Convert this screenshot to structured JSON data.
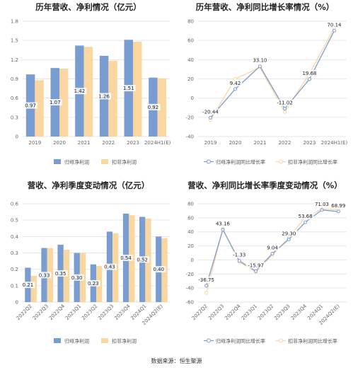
{
  "footer": {
    "source": "数据来源：恒生聚源"
  },
  "colors": {
    "blue": "#7a9dd1",
    "orange": "#fad7a0",
    "grid": "#e6e6e6"
  },
  "chart_data": [
    {
      "type": "bar",
      "title": "历年营收、净利情况（亿元）",
      "categories": [
        "2019",
        "2020",
        "2021",
        "2022",
        "2023",
        "2024H1(E)"
      ],
      "series": [
        {
          "name": "归母净利润",
          "values": [
            0.97,
            1.07,
            1.42,
            1.26,
            1.51,
            0.92
          ],
          "labels": [
            "0.97",
            "1.07",
            "1.42",
            "1.26",
            "1.51",
            "0.92"
          ]
        },
        {
          "name": "扣非净利润",
          "values": [
            0.88,
            1.06,
            1.4,
            1.18,
            1.48,
            0.91
          ]
        }
      ],
      "yticks": [
        "0",
        "0.3",
        "0.6",
        "0.9",
        "1.2",
        "1.5",
        "1.8"
      ],
      "ylim": [
        0,
        1.8
      ]
    },
    {
      "type": "line",
      "title": "历年营收、净利同比增长率情况（%）",
      "categories": [
        "2019",
        "2020",
        "2021",
        "2022",
        "2023",
        "2024H1(E)"
      ],
      "series": [
        {
          "name": "归母净利润同比增长率",
          "values": [
            -20.44,
            9.42,
            33.1,
            -11.02,
            19.68,
            70.14
          ],
          "labels": [
            "-20.44",
            "9.42",
            "33.10",
            "-11.02",
            "19.68",
            "70.14"
          ]
        },
        {
          "name": "扣非净利润同比增长率",
          "values": [
            -23.0,
            20.0,
            32.0,
            -14.5,
            25.5,
            73.0
          ]
        }
      ],
      "yticks": [
        "-40",
        "-20",
        "0",
        "20",
        "40",
        "60",
        "80"
      ],
      "ylim": [
        -40,
        80
      ]
    },
    {
      "type": "bar",
      "title": "营收、净利季度变动情况（亿元）",
      "categories": [
        "2022Q2",
        "2022Q3",
        "2022Q4",
        "2023Q1",
        "2023Q2",
        "2023Q3",
        "2023Q4",
        "2024Q1",
        "2024Q2(E)"
      ],
      "series": [
        {
          "name": "归母净利润",
          "values": [
            0.21,
            0.33,
            0.35,
            0.3,
            0.23,
            0.43,
            0.54,
            0.52,
            0.4
          ],
          "labels": [
            "0.21",
            "0.33",
            "0.35",
            "0.30",
            "0.23",
            "0.43",
            "0.54",
            "0.52",
            "0.40"
          ]
        },
        {
          "name": "扣非净利润",
          "values": [
            0.16,
            0.33,
            0.32,
            0.3,
            0.22,
            0.42,
            0.53,
            0.51,
            0.39
          ]
        }
      ],
      "yticks": [
        "0",
        "0.1",
        "0.2",
        "0.3",
        "0.4",
        "0.5",
        "0.6"
      ],
      "ylim": [
        0,
        0.6
      ]
    },
    {
      "type": "line",
      "title": "营收、净利同比增长率季度变动情况（%）",
      "categories": [
        "2022Q2",
        "2022Q3",
        "2022Q4",
        "2023Q1",
        "2023Q2",
        "2023Q3",
        "2023Q4",
        "2024Q1",
        "2024Q2(E)"
      ],
      "series": [
        {
          "name": "归母净利润同比增长率",
          "values": [
            -36.75,
            43.16,
            -1.33,
            -15.97,
            9.04,
            29.3,
            53.68,
            71.03,
            68.99
          ],
          "labels": [
            "-36.75",
            "43.16",
            "-1.33",
            "-15.97",
            "9.04",
            "29.30",
            "53.68",
            "71.03",
            "68.99"
          ]
        },
        {
          "name": "扣非净利润同比增长率",
          "values": [
            -47.0,
            44.0,
            -3.0,
            -17.0,
            7.0,
            32.0,
            61.0,
            72.0,
            72.0
          ]
        }
      ],
      "yticks": [
        "-60",
        "-40",
        "-20",
        "0",
        "20",
        "40",
        "60",
        "80"
      ],
      "ylim": [
        -60,
        80
      ]
    }
  ]
}
